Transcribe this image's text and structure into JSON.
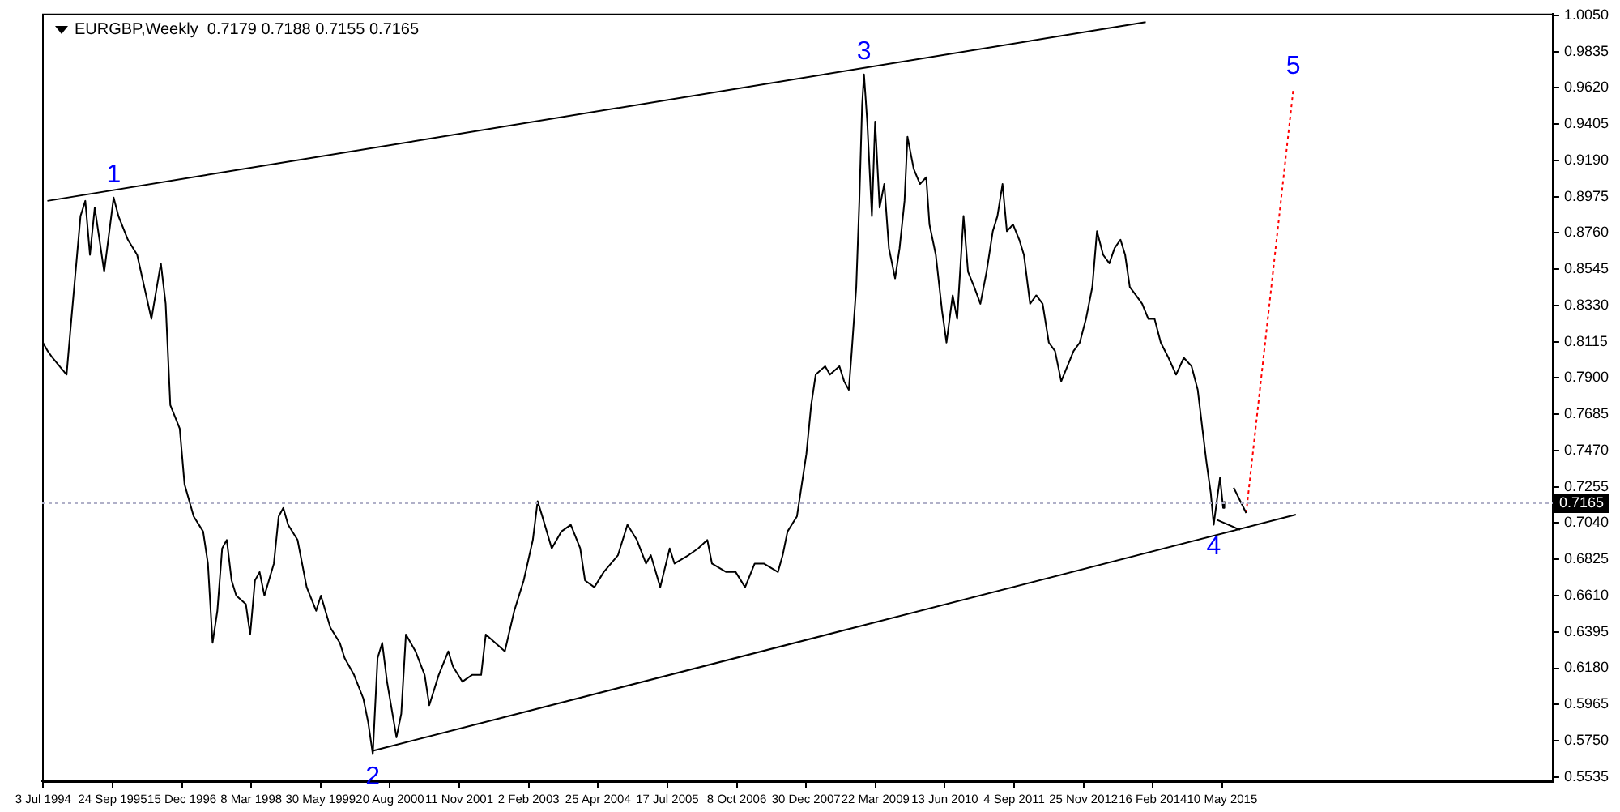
{
  "chart_data": {
    "type": "line",
    "title": "EURGBP,Weekly  0.7179 0.7188 0.7155 0.7165",
    "xlim": [
      "1994-06-26",
      "2021-03-14"
    ],
    "xticks": [
      {
        "value": "1994-07-03",
        "label": "3 Jul 1994"
      },
      {
        "value": "1995-09-24",
        "label": "24 Sep 1995"
      },
      {
        "value": "1996-12-15",
        "label": "15 Dec 1996"
      },
      {
        "value": "1998-03-08",
        "label": "8 Mar 1998"
      },
      {
        "value": "1999-05-30",
        "label": "30 May 1999"
      },
      {
        "value": "2000-08-20",
        "label": "20 Aug 2000"
      },
      {
        "value": "2001-11-11",
        "label": "11 Nov 2001"
      },
      {
        "value": "2003-02-02",
        "label": "2 Feb 2003"
      },
      {
        "value": "2004-04-25",
        "label": "25 Apr 2004"
      },
      {
        "value": "2005-07-17",
        "label": "17 Jul 2005"
      },
      {
        "value": "2006-10-08",
        "label": "8 Oct 2006"
      },
      {
        "value": "2007-12-30",
        "label": "30 Dec 2007"
      },
      {
        "value": "2009-03-22",
        "label": "22 Mar 2009"
      },
      {
        "value": "2010-06-13",
        "label": "13 Jun 2010"
      },
      {
        "value": "2011-09-04",
        "label": "4 Sep 2011"
      },
      {
        "value": "2012-11-25",
        "label": "25 Nov 2012"
      },
      {
        "value": "2014-02-16",
        "label": "16 Feb 2014"
      },
      {
        "value": "2015-05-10",
        "label": "10 May 2015"
      }
    ],
    "ylim": [
      0.551,
      1.006
    ],
    "yticks": [
      {
        "value": 1.005,
        "label": "1.0050"
      },
      {
        "value": 0.9835,
        "label": "0.9835"
      },
      {
        "value": 0.962,
        "label": "0.9620"
      },
      {
        "value": 0.9405,
        "label": "0.9405"
      },
      {
        "value": 0.919,
        "label": "0.9190"
      },
      {
        "value": 0.8975,
        "label": "0.8975"
      },
      {
        "value": 0.876,
        "label": "0.8760"
      },
      {
        "value": 0.8545,
        "label": "0.8545"
      },
      {
        "value": 0.833,
        "label": "0.8330"
      },
      {
        "value": 0.8115,
        "label": "0.8115"
      },
      {
        "value": 0.79,
        "label": "0.7900"
      },
      {
        "value": 0.7685,
        "label": "0.7685"
      },
      {
        "value": 0.747,
        "label": "0.7470"
      },
      {
        "value": 0.7255,
        "label": "0.7255"
      },
      {
        "value": 0.704,
        "label": "0.7040"
      },
      {
        "value": 0.6825,
        "label": "0.6825"
      },
      {
        "value": 0.661,
        "label": "0.6610"
      },
      {
        "value": 0.6395,
        "label": "0.6395"
      },
      {
        "value": 0.618,
        "label": "0.6180"
      },
      {
        "value": 0.5965,
        "label": "0.5965"
      },
      {
        "value": 0.575,
        "label": "0.5750"
      },
      {
        "value": 0.5535,
        "label": "0.5535"
      }
    ],
    "grid": false,
    "legend": false,
    "marker": "none",
    "series": [
      {
        "color": "#000000",
        "line_style": "solid",
        "x": [
          "1994-07",
          "1994-08",
          "1994-09",
          "1994-12",
          "1995-01",
          "1995-03",
          "1995-04",
          "1995-05",
          "1995-06",
          "1995-08",
          "1995-10",
          "1995-11",
          "1996-01",
          "1996-03",
          "1996-06",
          "1996-08",
          "1996-09",
          "1996-10",
          "1996-12",
          "1997-01",
          "1997-03",
          "1997-05",
          "1997-06",
          "1997-07",
          "1997-08",
          "1997-09",
          "1997-10",
          "1997-11",
          "1997-12",
          "1998-02",
          "1998-03",
          "1998-04",
          "1998-05",
          "1998-06",
          "1998-08",
          "1998-09",
          "1998-10",
          "1998-11",
          "1999-01",
          "1999-03",
          "1999-05",
          "1999-06",
          "1999-08",
          "1999-10",
          "1999-11",
          "2000-01",
          "2000-03",
          "2000-04",
          "2000-05",
          "2000-06",
          "2000-07",
          "2000-08",
          "2000-10",
          "2000-11",
          "2000-12",
          "2001-02",
          "2001-04",
          "2001-05",
          "2001-07",
          "2001-09",
          "2001-10",
          "2001-12",
          "2002-02",
          "2002-04",
          "2002-05",
          "2002-07",
          "2002-09",
          "2002-11",
          "2003-01",
          "2003-03",
          "2003-04",
          "2003-05",
          "2003-07",
          "2003-09",
          "2003-11",
          "2004-01",
          "2004-02",
          "2004-04",
          "2004-06",
          "2004-09",
          "2004-11",
          "2005-01",
          "2005-03",
          "2005-04",
          "2005-06",
          "2005-08",
          "2005-09",
          "2005-12",
          "2006-02",
          "2006-04",
          "2006-05",
          "2006-08",
          "2006-10",
          "2006-12",
          "2007-02",
          "2007-04",
          "2007-07",
          "2007-08",
          "2007-09",
          "2007-11",
          "2008-01",
          "2008-02",
          "2008-03",
          "2008-05",
          "2008-06",
          "2008-08",
          "2008-09",
          "2008-10-01",
          "2008-10-20",
          "2008-11-18",
          "2008-12-08",
          "2008-12-26",
          "2009-01-07",
          "2009-01-28",
          "2009-02-27",
          "2009-03-20",
          "2009-04-18",
          "2009-05-18",
          "2009-06-17",
          "2009-07-27",
          "2009-08-25",
          "2009-09-26",
          "2009-10-15",
          "2009-11-24",
          "2010-01-04",
          "2010-02-13",
          "2010-03-06",
          "2010-04-16",
          "2010-05-26",
          "2010-06-24",
          "2010-08-03",
          "2010-09-01",
          "2010-10-12",
          "2010-11-10",
          "2010-12-20",
          "2011-01-29",
          "2011-03-10",
          "2011-04-19",
          "2011-05-19",
          "2011-06-21",
          "2011-07-19",
          "2011-08-28",
          "2011-10-07",
          "2011-11-06",
          "2011-12-16",
          "2012-01-25",
          "2012-03-06",
          "2012-04-15",
          "2012-05-25",
          "2012-07-04",
          "2012-08-13",
          "2012-09-22",
          "2012-11-01",
          "2012-12-11",
          "2013-01-21",
          "2013-02-20",
          "2013-04-01",
          "2013-05-11",
          "2013-06-14",
          "2013-07-22",
          "2013-08-21",
          "2013-09-20",
          "2013-10-30",
          "2013-12-09",
          "2014-01-18",
          "2014-02-27",
          "2014-04-08",
          "2014-05-28",
          "2014-07-16",
          "2014-09-04",
          "2014-10-24",
          "2014-12-03",
          "2015-01-02",
          "2015-01-27",
          "2015-02-25",
          "2015-03-16",
          "2015-04-05",
          "2015-04-26",
          "2015-05-16",
          "2015-05-24"
        ],
        "values": [
          0.811,
          0.806,
          0.802,
          0.792,
          0.825,
          0.886,
          0.895,
          0.863,
          0.891,
          0.853,
          0.897,
          0.886,
          0.872,
          0.863,
          0.825,
          0.858,
          0.834,
          0.774,
          0.76,
          0.727,
          0.708,
          0.699,
          0.68,
          0.633,
          0.652,
          0.689,
          0.694,
          0.67,
          0.661,
          0.656,
          0.638,
          0.67,
          0.675,
          0.661,
          0.68,
          0.708,
          0.713,
          0.703,
          0.694,
          0.666,
          0.652,
          0.661,
          0.642,
          0.633,
          0.624,
          0.614,
          0.6,
          0.586,
          0.567,
          0.624,
          0.633,
          0.61,
          0.577,
          0.591,
          0.638,
          0.628,
          0.614,
          0.596,
          0.614,
          0.628,
          0.619,
          0.61,
          0.614,
          0.614,
          0.638,
          0.633,
          0.628,
          0.652,
          0.67,
          0.694,
          0.717,
          0.708,
          0.689,
          0.699,
          0.703,
          0.689,
          0.67,
          0.666,
          0.675,
          0.685,
          0.703,
          0.694,
          0.68,
          0.685,
          0.666,
          0.689,
          0.68,
          0.685,
          0.689,
          0.694,
          0.68,
          0.675,
          0.675,
          0.666,
          0.68,
          0.68,
          0.675,
          0.685,
          0.699,
          0.708,
          0.745,
          0.774,
          0.792,
          0.797,
          0.792,
          0.797,
          0.788,
          0.783,
          0.806,
          0.844,
          0.895,
          0.952,
          0.97,
          0.942,
          0.886,
          0.942,
          0.891,
          0.905,
          0.867,
          0.849,
          0.867,
          0.895,
          0.933,
          0.914,
          0.905,
          0.909,
          0.881,
          0.863,
          0.83,
          0.811,
          0.839,
          0.825,
          0.886,
          0.853,
          0.844,
          0.834,
          0.853,
          0.877,
          0.886,
          0.905,
          0.877,
          0.881,
          0.872,
          0.863,
          0.834,
          0.839,
          0.834,
          0.811,
          0.806,
          0.788,
          0.797,
          0.806,
          0.811,
          0.825,
          0.844,
          0.877,
          0.863,
          0.858,
          0.867,
          0.872,
          0.863,
          0.844,
          0.839,
          0.834,
          0.825,
          0.825,
          0.811,
          0.802,
          0.792,
          0.802,
          0.797,
          0.783,
          0.76,
          0.741,
          0.722,
          0.703,
          0.717,
          0.731,
          0.713,
          0.717
        ]
      },
      {
        "color": "#000000",
        "line_style": "solid",
        "x": [
          "1994-07-30",
          "2014-01-01"
        ],
        "values": [
          0.895,
          1.001
        ]
      },
      {
        "color": "#000000",
        "line_style": "solid",
        "x": [
          "2000-05",
          "2016-08-28"
        ],
        "values": [
          0.569,
          0.709
        ]
      },
      {
        "color": "#000000",
        "line_style": "solid",
        "x": [
          "2015-04-05",
          "2015-09-02"
        ],
        "values": [
          0.706,
          0.7
        ]
      },
      {
        "color": "#000000",
        "line_style": "solid",
        "x": [
          "2015-07-23",
          "2015-10-12"
        ],
        "values": [
          0.725,
          0.71
        ]
      },
      {
        "color": "#ff0000",
        "line_style": "dotted",
        "x": [
          "2015-10-12",
          "2016-08-11"
        ],
        "values": [
          0.71,
          0.961
        ]
      }
    ],
    "ref_lines": [
      {
        "axis": "y",
        "value": 0.7165,
        "label": "0.7165",
        "color": "#b0b0c8",
        "line_style": "dotted"
      }
    ],
    "annotations": [
      {
        "text": "1",
        "x": "1995-10",
        "y": 0.897
      },
      {
        "text": "2",
        "x": "2000-05",
        "y": 0.567
      },
      {
        "text": "3",
        "x": "2009-01-07",
        "y": 0.97
      },
      {
        "text": "4",
        "x": "2015-03-16",
        "y": 0.703
      },
      {
        "text": "5",
        "x": "2016-08-11",
        "y": 0.961
      }
    ]
  }
}
